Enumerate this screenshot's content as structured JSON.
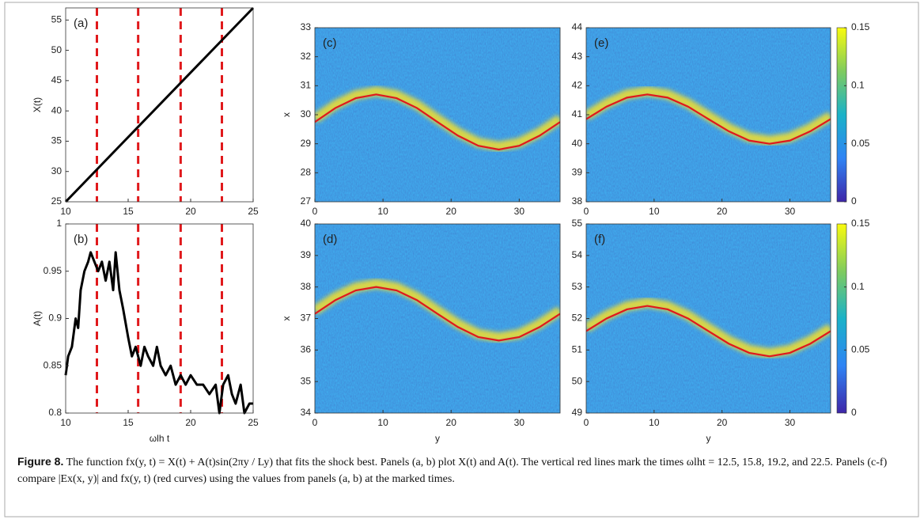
{
  "chart_data": [
    {
      "type": "line",
      "label": "(a)",
      "ylabel": "X(t)",
      "x": [
        10,
        25
      ],
      "values": [
        25,
        57
      ],
      "color": "#000000",
      "xlim": [
        10,
        25
      ],
      "xticks": [
        10,
        15,
        20,
        25
      ],
      "ylim": [
        25,
        57
      ],
      "yticks": [
        25,
        30,
        35,
        40,
        45,
        50,
        55
      ],
      "vlines": [
        12.5,
        15.8,
        19.2,
        22.5
      ],
      "vline_color": "#e0191c"
    },
    {
      "type": "line",
      "label": "(b)",
      "ylabel": "A(t)",
      "xlabel": "ωlh t",
      "x": [
        10,
        10.2,
        10.5,
        10.8,
        11.0,
        11.2,
        11.5,
        11.8,
        12.0,
        12.3,
        12.6,
        12.9,
        13.2,
        13.5,
        13.8,
        14.0,
        14.3,
        14.6,
        15.0,
        15.3,
        15.6,
        16.0,
        16.3,
        16.6,
        17.0,
        17.3,
        17.6,
        18.0,
        18.4,
        18.8,
        19.2,
        19.6,
        20.0,
        20.5,
        21.0,
        21.5,
        22.0,
        22.3,
        22.6,
        23.0,
        23.3,
        23.6,
        24.0,
        24.3,
        24.7,
        25.0
      ],
      "values": [
        0.84,
        0.86,
        0.87,
        0.9,
        0.89,
        0.93,
        0.95,
        0.96,
        0.97,
        0.96,
        0.95,
        0.96,
        0.94,
        0.96,
        0.93,
        0.97,
        0.93,
        0.91,
        0.88,
        0.86,
        0.87,
        0.85,
        0.87,
        0.86,
        0.85,
        0.87,
        0.85,
        0.84,
        0.85,
        0.83,
        0.84,
        0.83,
        0.84,
        0.83,
        0.83,
        0.82,
        0.83,
        0.8,
        0.83,
        0.84,
        0.82,
        0.81,
        0.83,
        0.8,
        0.81,
        0.81
      ],
      "color": "#000000",
      "xlim": [
        10,
        25
      ],
      "xticks": [
        10,
        15,
        20,
        25
      ],
      "ylim": [
        0.8,
        1
      ],
      "yticks": [
        0.8,
        0.85,
        0.9,
        0.95,
        1
      ],
      "vlines": [
        12.5,
        15.8,
        19.2,
        22.5
      ],
      "vline_color": "#e0191c"
    },
    {
      "type": "heatmap",
      "label": "(c)",
      "ylabel": "x",
      "x": [
        0,
        3,
        6,
        9,
        12,
        15,
        18,
        21,
        24,
        27,
        30,
        33,
        36
      ],
      "values": [
        29.75,
        30.23,
        30.57,
        30.7,
        30.57,
        30.23,
        29.75,
        29.28,
        28.93,
        28.8,
        28.93,
        29.28,
        29.75
      ],
      "color": "#e0191c",
      "xlim": [
        0,
        36
      ],
      "xticks": [
        0,
        10,
        20,
        30
      ],
      "ylim": [
        27,
        33
      ],
      "yticks": [
        27,
        28,
        29,
        30,
        31,
        32,
        33
      ]
    },
    {
      "type": "heatmap",
      "label": "(d)",
      "ylabel": "x",
      "xlabel": "y",
      "x": [
        0,
        3,
        6,
        9,
        12,
        15,
        18,
        21,
        24,
        27,
        30,
        33,
        36
      ],
      "values": [
        37.15,
        37.58,
        37.89,
        38.0,
        37.89,
        37.58,
        37.15,
        36.73,
        36.41,
        36.3,
        36.41,
        36.73,
        37.15
      ],
      "color": "#e0191c",
      "xlim": [
        0,
        36
      ],
      "xticks": [
        0,
        10,
        20,
        30
      ],
      "ylim": [
        34,
        40
      ],
      "yticks": [
        34,
        35,
        36,
        37,
        38,
        39,
        40
      ]
    },
    {
      "type": "heatmap",
      "label": "(e)",
      "x": [
        0,
        3,
        6,
        9,
        12,
        15,
        18,
        21,
        24,
        27,
        30,
        33,
        36
      ],
      "values": [
        40.85,
        41.28,
        41.59,
        41.7,
        41.59,
        41.28,
        40.85,
        40.43,
        40.11,
        40.0,
        40.11,
        40.43,
        40.85
      ],
      "color": "#e0191c",
      "xlim": [
        0,
        36
      ],
      "xticks": [
        0,
        10,
        20,
        30
      ],
      "ylim": [
        38,
        44
      ],
      "yticks": [
        38,
        39,
        40,
        41,
        42,
        43,
        44
      ],
      "colorbar": {
        "lim": [
          0,
          0.15
        ],
        "ticks": [
          0,
          0.05,
          0.1,
          0.15
        ],
        "colormap": [
          "#3e26a8",
          "#2f84f5",
          "#1ab2c8",
          "#7fcb5e",
          "#f9fb0e"
        ]
      }
    },
    {
      "type": "heatmap",
      "label": "(f)",
      "xlabel": "y",
      "x": [
        0,
        3,
        6,
        9,
        12,
        15,
        18,
        21,
        24,
        27,
        30,
        33,
        36
      ],
      "values": [
        51.6,
        52.0,
        52.29,
        52.4,
        52.29,
        52.0,
        51.6,
        51.2,
        50.91,
        50.8,
        50.91,
        51.2,
        51.6
      ],
      "color": "#e0191c",
      "xlim": [
        0,
        36
      ],
      "xticks": [
        0,
        10,
        20,
        30
      ],
      "ylim": [
        49,
        55
      ],
      "yticks": [
        49,
        50,
        51,
        52,
        53,
        54,
        55
      ],
      "colorbar": {
        "lim": [
          0,
          0.15
        ],
        "ticks": [
          0,
          0.05,
          0.1,
          0.15
        ],
        "colormap": [
          "#3e26a8",
          "#2f84f5",
          "#1ab2c8",
          "#7fcb5e",
          "#f9fb0e"
        ]
      }
    }
  ],
  "caption": {
    "label": "Figure 8.",
    "text": "The function fx(y, t) = X(t) + A(t)sin(2πy / Ly) that fits the shock best. Panels (a, b) plot X(t) and A(t). The vertical red lines mark the times ωlht = 12.5, 15.8, 19.2, and 22.5. Panels (c-f) compare |Ex(x, y)| and fx(y, t) (red curves) using the values from panels (a, b) at the marked times."
  }
}
